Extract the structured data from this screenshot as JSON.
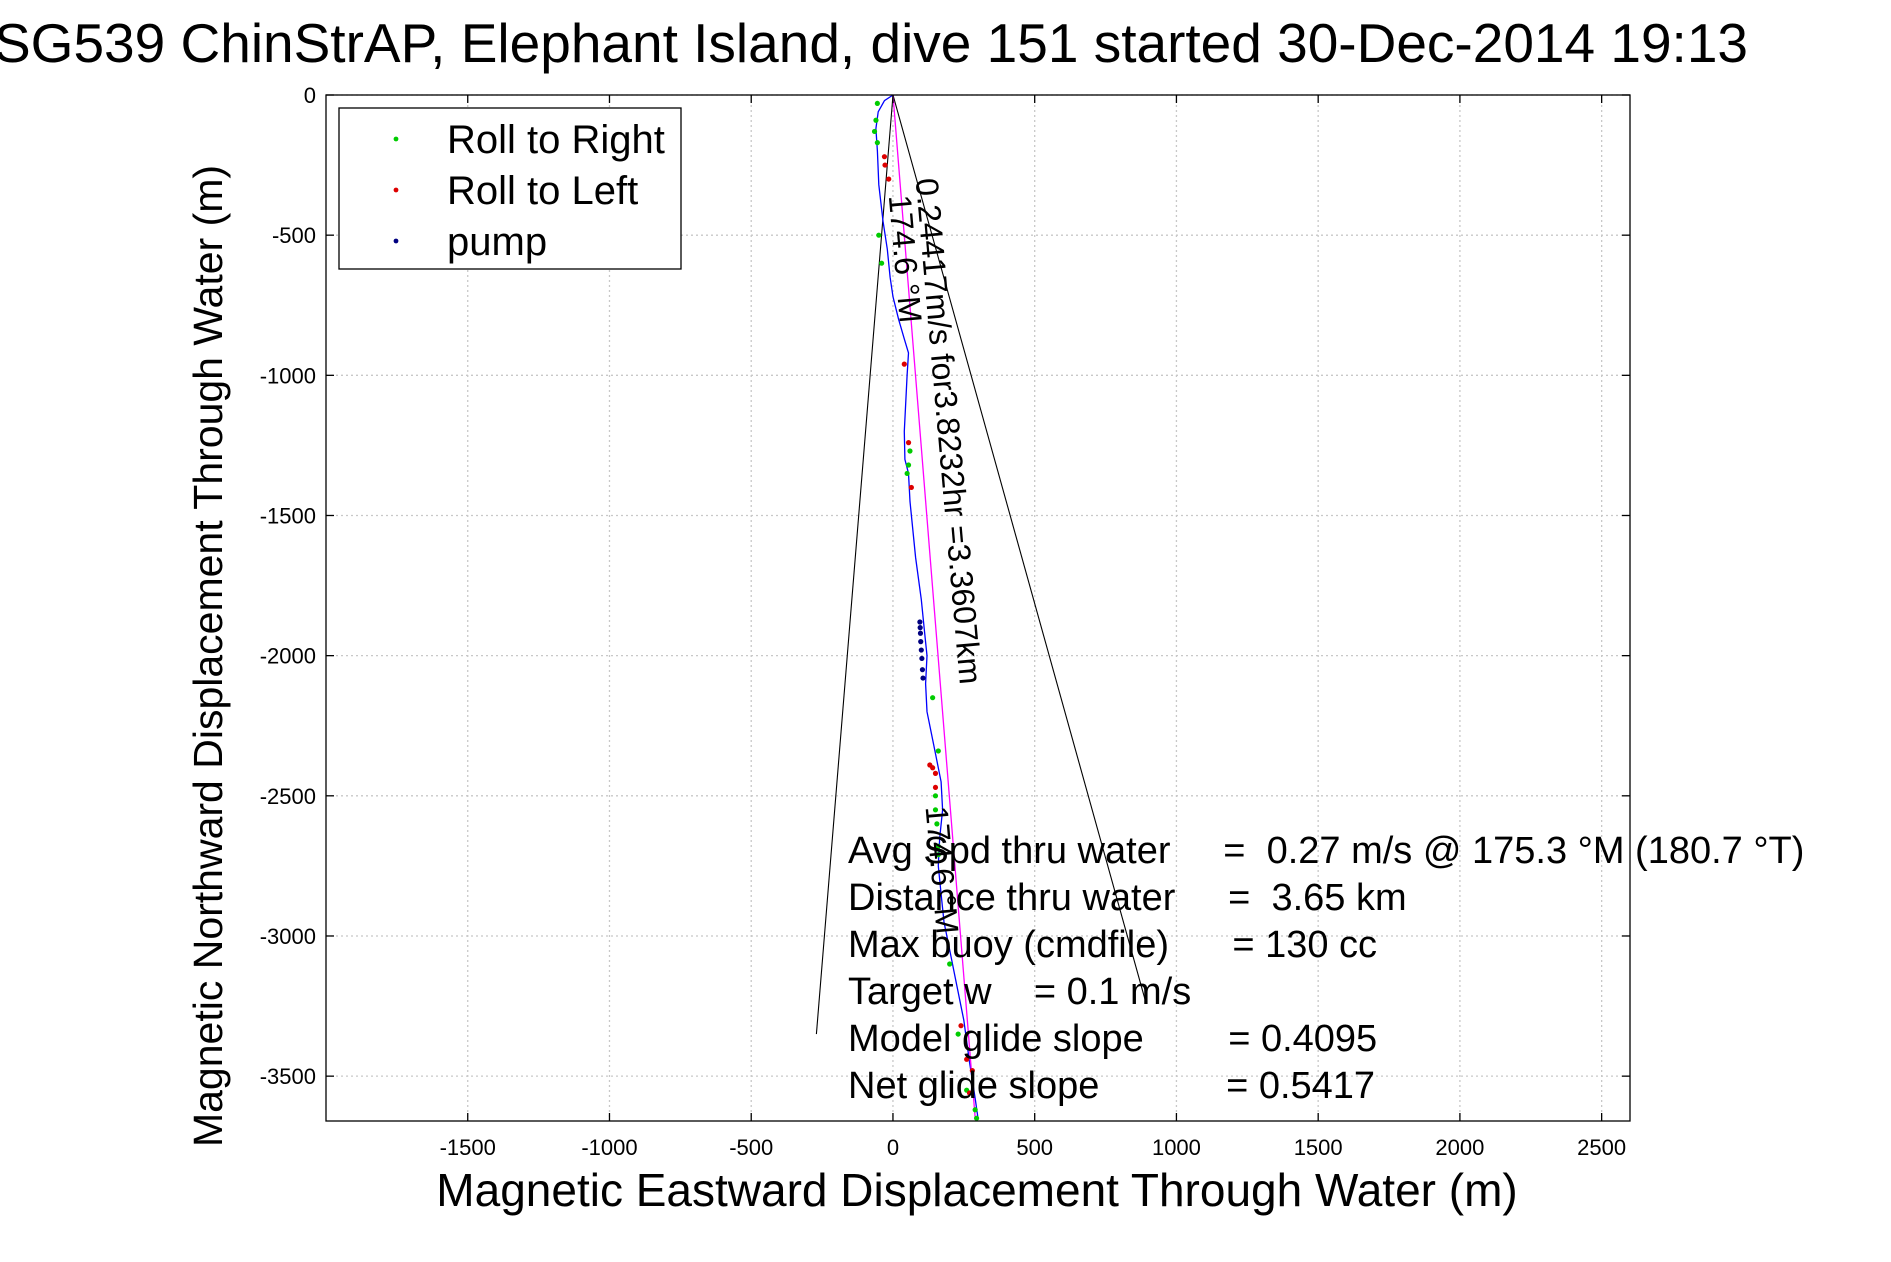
{
  "chart_data": {
    "type": "line",
    "title": "SG539 ChinStrAP, Elephant Island, dive 151 started 30-Dec-2014 19:13",
    "xlabel": "Magnetic Eastward Displacement Through Water (m)",
    "ylabel": "Magnetic Northward Displacement Through Water (m)",
    "xlim": [
      -2000,
      2600
    ],
    "ylim": [
      -3660,
      0
    ],
    "x_ticks": [
      -1500,
      -1000,
      -500,
      0,
      500,
      1000,
      1500,
      2000,
      2500
    ],
    "y_ticks": [
      0,
      -500,
      -1000,
      -1500,
      -2000,
      -2500,
      -3000,
      -3500
    ],
    "grid": true,
    "legend_position": "top-left",
    "legend": [
      {
        "label": "Roll to Right",
        "color": "#00cc00"
      },
      {
        "label": "Roll to Left",
        "color": "#dd0000"
      },
      {
        "label": "pump",
        "color": "#000080"
      }
    ],
    "colors": {
      "track": "#0000ff",
      "course_line": "#ff00ff",
      "wedge": "#000000"
    },
    "series": [
      {
        "name": "track",
        "x": [
          0,
          -30,
          -52,
          -60,
          -55,
          -50,
          -35,
          -20,
          -10,
          0,
          20,
          40,
          55,
          50,
          45,
          40,
          42,
          55,
          60,
          70,
          80,
          100,
          110,
          120,
          115,
          120,
          150,
          170,
          175,
          165,
          160,
          170,
          180,
          200,
          220,
          250,
          270,
          290,
          300
        ],
        "y": [
          0,
          -20,
          -60,
          -120,
          -200,
          -320,
          -450,
          -550,
          -650,
          -720,
          -800,
          -870,
          -920,
          -1000,
          -1100,
          -1200,
          -1300,
          -1350,
          -1450,
          -1550,
          -1650,
          -1800,
          -1900,
          -2000,
          -2100,
          -2200,
          -2350,
          -2450,
          -2550,
          -2650,
          -2750,
          -2850,
          -2950,
          -3050,
          -3150,
          -3300,
          -3450,
          -3580,
          -3650
        ]
      },
      {
        "name": "course line",
        "x": [
          0,
          290
        ],
        "y": [
          0,
          -3650
        ]
      },
      {
        "name": "wedge edge 1",
        "x": [
          0,
          -270
        ],
        "y": [
          0,
          -3350
        ]
      },
      {
        "name": "wedge edge 2",
        "x": [
          0,
          890
        ],
        "y": [
          0,
          -3230
        ]
      }
    ],
    "points": {
      "roll_right": [
        [
          -55,
          -30
        ],
        [
          -60,
          -90
        ],
        [
          -65,
          -130
        ],
        [
          -55,
          -170
        ],
        [
          -50,
          -500
        ],
        [
          -40,
          -600
        ],
        [
          60,
          -1270
        ],
        [
          55,
          -1320
        ],
        [
          50,
          -1350
        ],
        [
          140,
          -2150
        ],
        [
          160,
          -2340
        ],
        [
          150,
          -2500
        ],
        [
          150,
          -2550
        ],
        [
          155,
          -2600
        ],
        [
          160,
          -2680
        ],
        [
          160,
          -2710
        ],
        [
          200,
          -3100
        ],
        [
          230,
          -3350
        ],
        [
          260,
          -3550
        ],
        [
          290,
          -3620
        ],
        [
          295,
          -3650
        ]
      ],
      "roll_left": [
        [
          -30,
          -220
        ],
        [
          -28,
          -250
        ],
        [
          -15,
          -300
        ],
        [
          40,
          -960
        ],
        [
          55,
          -1240
        ],
        [
          65,
          -1400
        ],
        [
          130,
          -2390
        ],
        [
          140,
          -2400
        ],
        [
          150,
          -2420
        ],
        [
          150,
          -2470
        ],
        [
          240,
          -3320
        ],
        [
          260,
          -3440
        ],
        [
          280,
          -3480
        ],
        [
          270,
          -3560
        ]
      ],
      "pump": [
        [
          95,
          -1880
        ],
        [
          96,
          -1900
        ],
        [
          97,
          -1920
        ],
        [
          98,
          -1950
        ],
        [
          100,
          -1980
        ],
        [
          102,
          -2010
        ],
        [
          104,
          -2050
        ],
        [
          106,
          -2080
        ]
      ]
    },
    "annotations": {
      "course_label": "0.24417m/s for3.8232hr =3.3607km",
      "wedge_label_1": "174.6 °M",
      "wedge_label_2": "174.6 °M",
      "stats": [
        "Avg Spd thru water     =  0.27 m/s @ 175.3 °M (180.7 °T)",
        "Distance thru water     =  3.65 km",
        "Max buoy (cmdfile)      = 130 cc",
        "Target w    = 0.1 m/s",
        "Model glide slope        = 0.4095",
        "Net glide slope            = 0.5417"
      ]
    }
  }
}
